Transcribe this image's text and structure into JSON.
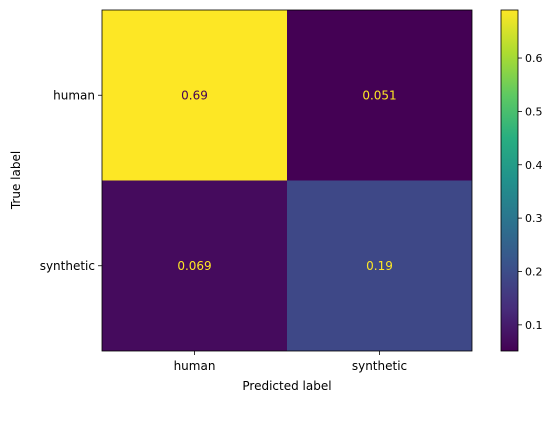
{
  "chart_data": {
    "type": "heatmap",
    "title": "",
    "xlabel": "Predicted label",
    "ylabel": "True label",
    "x_categories": [
      "human",
      "synthetic"
    ],
    "y_categories": [
      "human",
      "synthetic"
    ],
    "values": [
      [
        0.69,
        0.051
      ],
      [
        0.069,
        0.19
      ]
    ],
    "value_labels": [
      [
        "0.69",
        "0.051"
      ],
      [
        "0.069",
        "0.19"
      ]
    ],
    "colormap": "viridis",
    "color_range": [
      0.051,
      0.69
    ],
    "colorbar_ticks": [
      0.1,
      0.2,
      0.3,
      0.4,
      0.5,
      0.6
    ],
    "colorbar_tick_labels": [
      "0.1",
      "0.2",
      "0.3",
      "0.4",
      "0.5",
      "0.6"
    ],
    "text_colors": {
      "on_dark": "#fde725",
      "on_light": "#440154"
    },
    "grid": false
  }
}
